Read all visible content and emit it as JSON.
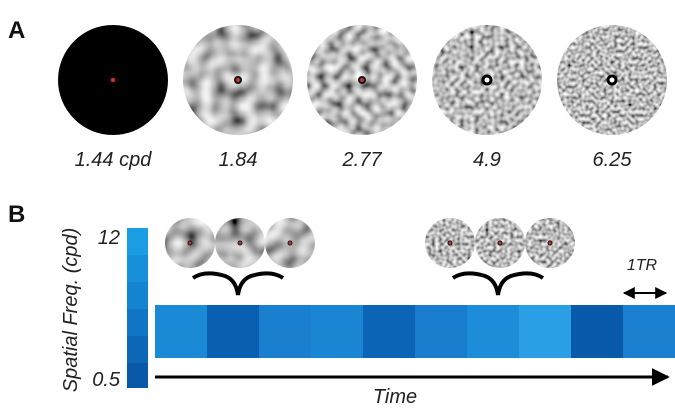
{
  "panel_a": {
    "label": "A",
    "stimuli": [
      "1.44 cpd",
      "1.84",
      "2.77",
      "4.9",
      "6.25"
    ]
  },
  "panel_b": {
    "label": "B",
    "y_axis_label": "Spatial Freq. (cpd)",
    "scale_top": "12",
    "scale_bottom": "0.5",
    "tr_label": "1TR",
    "x_axis_label": "Time"
  }
}
